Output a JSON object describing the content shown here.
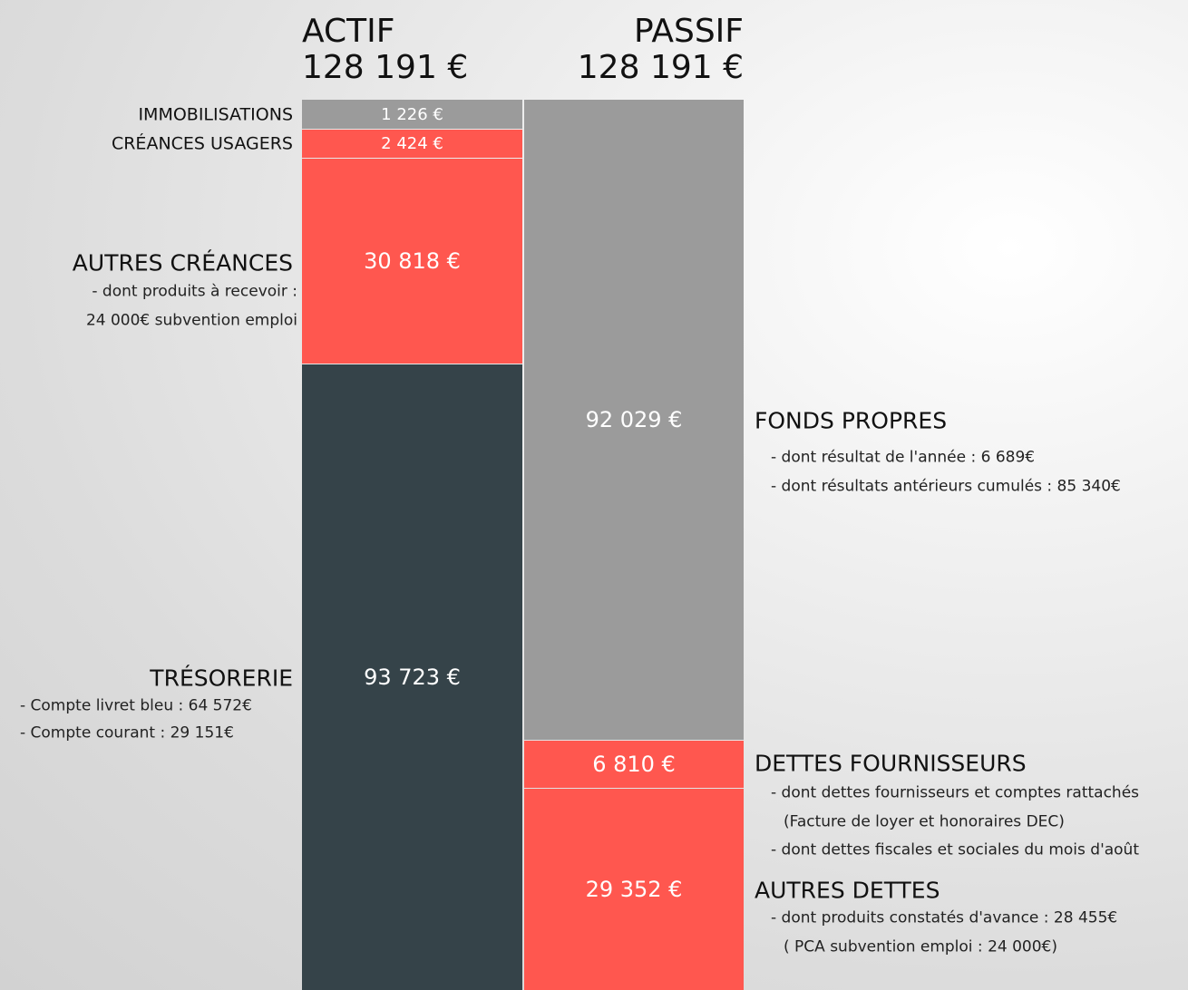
{
  "actif": {
    "title": "ACTIF",
    "total": "128 191 €",
    "blocks": [
      {
        "label": "IMMOBILISATIONS",
        "amount": "1 226 €"
      },
      {
        "label": "CRÉANCES USAGERS",
        "amount": "2 424 €"
      },
      {
        "label": "AUTRES CRÉANCES",
        "amount": "30 818 €",
        "notes": [
          "- dont produits à recevoir :",
          "24 000€ subvention emploi"
        ]
      },
      {
        "label": "TRÉSORERIE",
        "amount": "93 723 €",
        "notes": [
          "- Compte livret bleu : 64 572€",
          "- Compte courant : 29 151€"
        ]
      }
    ]
  },
  "passif": {
    "title": "PASSIF",
    "total": "128 191 €",
    "blocks": [
      {
        "label": "FONDS PROPRES",
        "amount": "92 029 €",
        "notes": [
          "- dont résultat de l'année  : 6 689€",
          "- dont résultats antérieurs cumulés : 85 340€"
        ]
      },
      {
        "label": "DETTES FOURNISSEURS",
        "amount": "6 810 €",
        "notes": [
          "- dont dettes fournisseurs et comptes rattachés",
          "(Facture de loyer et honoraires DEC)",
          "- dont dettes fiscales et sociales du mois d'août"
        ]
      },
      {
        "label": "AUTRES DETTES",
        "amount": "29 352 €",
        "notes": [
          "- dont produits constatés d'avance : 28 455€",
          "( PCA subvention emploi : 24 000€)"
        ]
      }
    ]
  }
}
